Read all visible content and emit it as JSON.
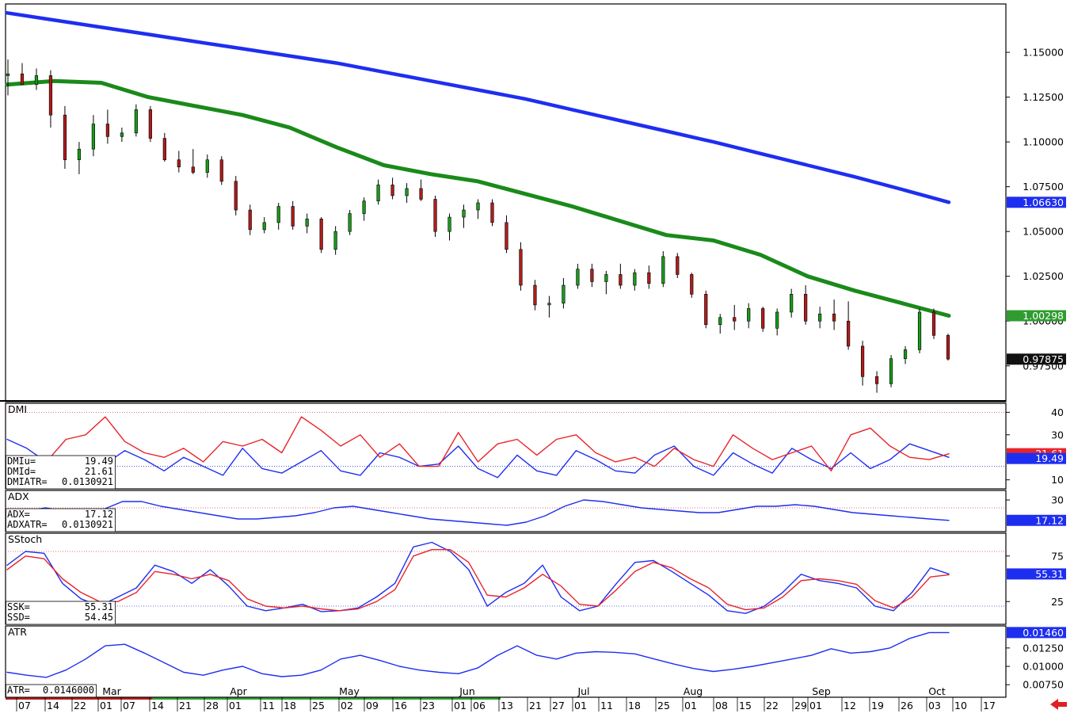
{
  "chart_data": [
    {
      "panel": "price",
      "type": "candlestick",
      "y_ticks": [
        "1.15000",
        "1.12500",
        "1.10000",
        "1.07500",
        "1.05000",
        "1.02500",
        "1.00000",
        "0.97500"
      ],
      "ylim": [
        0.955,
        1.177
      ],
      "grid": false,
      "tags": [
        {
          "value": "1.06630",
          "bg": "#1e2ef0",
          "fg": "#ffffff",
          "y": 1.0663
        },
        {
          "value": "1.00298",
          "bg": "#2e9c2e",
          "fg": "#ffffff",
          "y": 1.00298
        },
        {
          "value": "0.97875",
          "bg": "#111111",
          "fg": "#ffffff",
          "y": 0.97875
        }
      ],
      "series": [
        {
          "kind": "ma",
          "color": "#1e2ef0",
          "values": [
            1.172,
            1.168,
            1.164,
            1.16,
            1.156,
            1.152,
            1.148,
            1.144,
            1.139,
            1.134,
            1.129,
            1.124,
            1.118,
            1.112,
            1.106,
            1.1,
            1.0935,
            1.087,
            1.0805,
            1.0735,
            1.0663
          ]
        },
        {
          "kind": "ma",
          "color": "#1a8a1a",
          "values": [
            1.132,
            1.134,
            1.133,
            1.125,
            1.12,
            1.115,
            1.108,
            1.097,
            1.087,
            1.082,
            1.078,
            1.071,
            1.064,
            1.056,
            1.048,
            1.045,
            1.037,
            1.025,
            1.017,
            1.01,
            1.003
          ]
        },
        {
          "kind": "candles",
          "up": "#1a9a1a",
          "down": "#b01c1c",
          "candles": [
            [
              1.137,
              1.146,
              1.126,
              1.138
            ],
            [
              1.138,
              1.144,
              1.132,
              1.132
            ],
            [
              1.132,
              1.141,
              1.129,
              1.137
            ],
            [
              1.137,
              1.14,
              1.108,
              1.115
            ],
            [
              1.115,
              1.12,
              1.085,
              1.09
            ],
            [
              1.09,
              1.1,
              1.082,
              1.096
            ],
            [
              1.096,
              1.115,
              1.092,
              1.11
            ],
            [
              1.11,
              1.118,
              1.099,
              1.103
            ],
            [
              1.103,
              1.108,
              1.1,
              1.105
            ],
            [
              1.105,
              1.121,
              1.103,
              1.118
            ],
            [
              1.118,
              1.12,
              1.1,
              1.102
            ],
            [
              1.102,
              1.105,
              1.089,
              1.09
            ],
            [
              1.09,
              1.095,
              1.083,
              1.086
            ],
            [
              1.086,
              1.096,
              1.082,
              1.083
            ],
            [
              1.083,
              1.093,
              1.08,
              1.09
            ],
            [
              1.09,
              1.092,
              1.076,
              1.078
            ],
            [
              1.078,
              1.081,
              1.059,
              1.062
            ],
            [
              1.062,
              1.065,
              1.048,
              1.051
            ],
            [
              1.051,
              1.058,
              1.049,
              1.055
            ],
            [
              1.055,
              1.066,
              1.051,
              1.064
            ],
            [
              1.064,
              1.067,
              1.051,
              1.053
            ],
            [
              1.053,
              1.06,
              1.049,
              1.057
            ],
            [
              1.057,
              1.058,
              1.038,
              1.04
            ],
            [
              1.04,
              1.053,
              1.037,
              1.05
            ],
            [
              1.05,
              1.062,
              1.048,
              1.06
            ],
            [
              1.06,
              1.069,
              1.056,
              1.067
            ],
            [
              1.067,
              1.079,
              1.065,
              1.076
            ],
            [
              1.076,
              1.08,
              1.068,
              1.07
            ],
            [
              1.07,
              1.077,
              1.066,
              1.074
            ],
            [
              1.074,
              1.079,
              1.067,
              1.068
            ],
            [
              1.068,
              1.07,
              1.047,
              1.05
            ],
            [
              1.05,
              1.06,
              1.045,
              1.058
            ],
            [
              1.058,
              1.065,
              1.052,
              1.062
            ],
            [
              1.062,
              1.068,
              1.057,
              1.066
            ],
            [
              1.066,
              1.068,
              1.053,
              1.055
            ],
            [
              1.055,
              1.059,
              1.038,
              1.04
            ],
            [
              1.04,
              1.044,
              1.017,
              1.02
            ],
            [
              1.02,
              1.023,
              1.006,
              1.009
            ],
            [
              1.009,
              1.014,
              1.002,
              1.01
            ],
            [
              1.01,
              1.024,
              1.007,
              1.02
            ],
            [
              1.02,
              1.032,
              1.018,
              1.029
            ],
            [
              1.029,
              1.032,
              1.019,
              1.022
            ],
            [
              1.022,
              1.028,
              1.015,
              1.026
            ],
            [
              1.026,
              1.032,
              1.018,
              1.02
            ],
            [
              1.02,
              1.029,
              1.017,
              1.027
            ],
            [
              1.027,
              1.031,
              1.018,
              1.021
            ],
            [
              1.021,
              1.039,
              1.019,
              1.036
            ],
            [
              1.036,
              1.038,
              1.024,
              1.026
            ],
            [
              1.026,
              1.027,
              1.013,
              1.015
            ],
            [
              1.015,
              1.017,
              0.996,
              0.998
            ],
            [
              0.998,
              1.004,
              0.993,
              1.002
            ],
            [
              1.002,
              1.009,
              0.995,
              1.0
            ],
            [
              1.0,
              1.01,
              0.996,
              1.007
            ],
            [
              1.007,
              1.008,
              0.994,
              0.996
            ],
            [
              0.996,
              1.007,
              0.992,
              1.005
            ],
            [
              1.005,
              1.018,
              1.002,
              1.015
            ],
            [
              1.015,
              1.02,
              0.998,
              1.0
            ],
            [
              1.0,
              1.008,
              0.996,
              1.004
            ],
            [
              1.004,
              1.012,
              0.995,
              1.0
            ],
            [
              1.0,
              1.011,
              0.984,
              0.986
            ],
            [
              0.986,
              0.989,
              0.964,
              0.969
            ],
            [
              0.969,
              0.972,
              0.96,
              0.965
            ],
            [
              0.965,
              0.981,
              0.963,
              0.979
            ],
            [
              0.979,
              0.986,
              0.976,
              0.984
            ],
            [
              0.984,
              1.007,
              0.982,
              1.005
            ],
            [
              1.005,
              1.007,
              0.99,
              0.992
            ],
            [
              0.992,
              0.993,
              0.978,
              0.9788
            ]
          ]
        }
      ]
    },
    {
      "panel": "DMI",
      "type": "line",
      "title": "DMI",
      "y_ticks": [
        "40",
        "30",
        "10"
      ],
      "ylim": [
        6,
        44
      ],
      "ref_lines": [
        40,
        16
      ],
      "tags": [
        {
          "value": "21.61",
          "bg": "#e8242a",
          "fg": "#ffffff",
          "y": 21.61
        },
        {
          "value": "19.49",
          "bg": "#1e2ef0",
          "fg": "#ffffff",
          "y": 19.49
        }
      ],
      "readout": [
        "DMIu=",
        "19.49",
        "DMId=",
        "21.61",
        "DMIATR=",
        "0.0130921"
      ],
      "series": [
        {
          "kind": "line",
          "color": "#1e2ef0",
          "values": [
            28,
            24,
            18,
            16,
            13,
            17,
            23,
            19,
            14,
            20,
            16,
            12,
            24,
            15,
            13,
            18,
            23,
            14,
            12,
            22,
            20,
            16,
            17,
            25,
            15,
            11,
            21,
            14,
            12,
            23,
            19,
            14,
            13,
            21,
            25,
            16,
            12,
            22,
            17,
            13,
            24,
            19,
            15,
            22,
            15,
            19,
            26,
            23,
            20
          ]
        },
        {
          "kind": "line",
          "color": "#e8242a",
          "values": [
            20,
            19,
            18,
            28,
            30,
            38,
            27,
            22,
            20,
            24,
            18,
            27,
            25,
            28,
            22,
            38,
            32,
            25,
            30,
            20,
            26,
            16,
            16,
            31,
            18,
            26,
            28,
            21,
            28,
            30,
            22,
            18,
            20,
            16,
            24,
            19,
            16,
            30,
            24,
            19,
            22,
            25,
            14,
            30,
            33,
            25,
            20,
            19,
            21.6
          ]
        }
      ]
    },
    {
      "panel": "ADX",
      "type": "line",
      "title": "ADX",
      "y_ticks": [
        "30"
      ],
      "ylim": [
        10,
        36
      ],
      "ref_lines": [
        25
      ],
      "tags": [
        {
          "value": "17.12",
          "bg": "#1e2ef0",
          "fg": "#ffffff",
          "y": 17.12
        }
      ],
      "readout": [
        "ADX=",
        "17.12",
        "ADXATR=",
        "0.0130921"
      ],
      "series": [
        {
          "kind": "line",
          "color": "#1e2ef0",
          "values": [
            22,
            23,
            25,
            23,
            21,
            24,
            29,
            29,
            26,
            24,
            22,
            20,
            18,
            18,
            19,
            20,
            22,
            25,
            26,
            24,
            22,
            20,
            18,
            17,
            16,
            15,
            14,
            16,
            20,
            26,
            30,
            29,
            27,
            25,
            24,
            23,
            22,
            22,
            24,
            26,
            26,
            27,
            26,
            24,
            22,
            21,
            20,
            19,
            18,
            17.12
          ]
        }
      ]
    },
    {
      "panel": "SStoch",
      "type": "line",
      "title": "SStoch",
      "y_ticks": [
        "75",
        "25"
      ],
      "ylim": [
        0,
        100
      ],
      "ref_lines": [
        80,
        20
      ],
      "tags": [
        {
          "value": "55.31",
          "bg": "#1e2ef0",
          "fg": "#ffffff",
          "y": 55.31
        }
      ],
      "readout": [
        "SSK=",
        "55.31",
        "SSD=",
        "54.45"
      ],
      "series": [
        {
          "kind": "line",
          "color": "#1e2ef0",
          "values": [
            65,
            80,
            78,
            45,
            28,
            20,
            30,
            40,
            65,
            58,
            45,
            60,
            42,
            20,
            15,
            18,
            22,
            14,
            15,
            18,
            30,
            45,
            85,
            90,
            80,
            60,
            20,
            35,
            45,
            65,
            30,
            15,
            20,
            45,
            68,
            70,
            58,
            45,
            32,
            15,
            12,
            20,
            35,
            55,
            48,
            45,
            40,
            20,
            15,
            35,
            62,
            55.31
          ]
        },
        {
          "kind": "line",
          "color": "#e8242a",
          "values": [
            60,
            75,
            72,
            50,
            35,
            25,
            25,
            35,
            58,
            55,
            50,
            55,
            48,
            28,
            20,
            18,
            20,
            17,
            15,
            17,
            25,
            38,
            75,
            82,
            82,
            68,
            32,
            30,
            40,
            55,
            42,
            22,
            20,
            38,
            58,
            68,
            62,
            50,
            40,
            22,
            16,
            18,
            30,
            48,
            50,
            48,
            44,
            26,
            18,
            30,
            52,
            54.45
          ]
        }
      ]
    },
    {
      "panel": "ATR",
      "type": "line",
      "title": "ATR",
      "y_ticks": [
        "0.01250",
        "0.01000",
        "0.00750"
      ],
      "ylim": [
        0.0058,
        0.0155
      ],
      "tags": [
        {
          "value": "0.01460",
          "bg": "#1e2ef0",
          "fg": "#ffffff",
          "y": 0.0146
        }
      ],
      "readout": [
        "ATR=",
        "0.0146000"
      ],
      "series": [
        {
          "kind": "line",
          "color": "#1e2ef0",
          "values": [
            0.0092,
            0.0088,
            0.0085,
            0.0095,
            0.011,
            0.0128,
            0.013,
            0.0118,
            0.0105,
            0.0092,
            0.0088,
            0.0095,
            0.01,
            0.009,
            0.0086,
            0.0088,
            0.0095,
            0.011,
            0.0115,
            0.0108,
            0.01,
            0.0095,
            0.0092,
            0.009,
            0.0098,
            0.0115,
            0.0128,
            0.0115,
            0.011,
            0.0118,
            0.012,
            0.0119,
            0.0117,
            0.011,
            0.0103,
            0.0097,
            0.0093,
            0.0096,
            0.01,
            0.0105,
            0.011,
            0.0115,
            0.0124,
            0.0118,
            0.012,
            0.0125,
            0.0138,
            0.0146,
            0.0146
          ]
        }
      ]
    }
  ],
  "time_axis": {
    "days": [
      "07",
      "14",
      "22",
      "01",
      "07",
      "14",
      "21",
      "28",
      "01",
      "11",
      "18",
      "25",
      "02",
      "09",
      "16",
      "23",
      "01",
      "06",
      "13",
      "21",
      "27",
      "01",
      "11",
      "18",
      "25",
      "01",
      "08",
      "15",
      "22",
      "29",
      "01",
      "12",
      "19",
      "26",
      "03",
      "10",
      "17"
    ],
    "months": [
      "Mar",
      "Apr",
      "May",
      "Jun",
      "Jul",
      "Aug",
      "Sep",
      "Oct"
    ]
  }
}
